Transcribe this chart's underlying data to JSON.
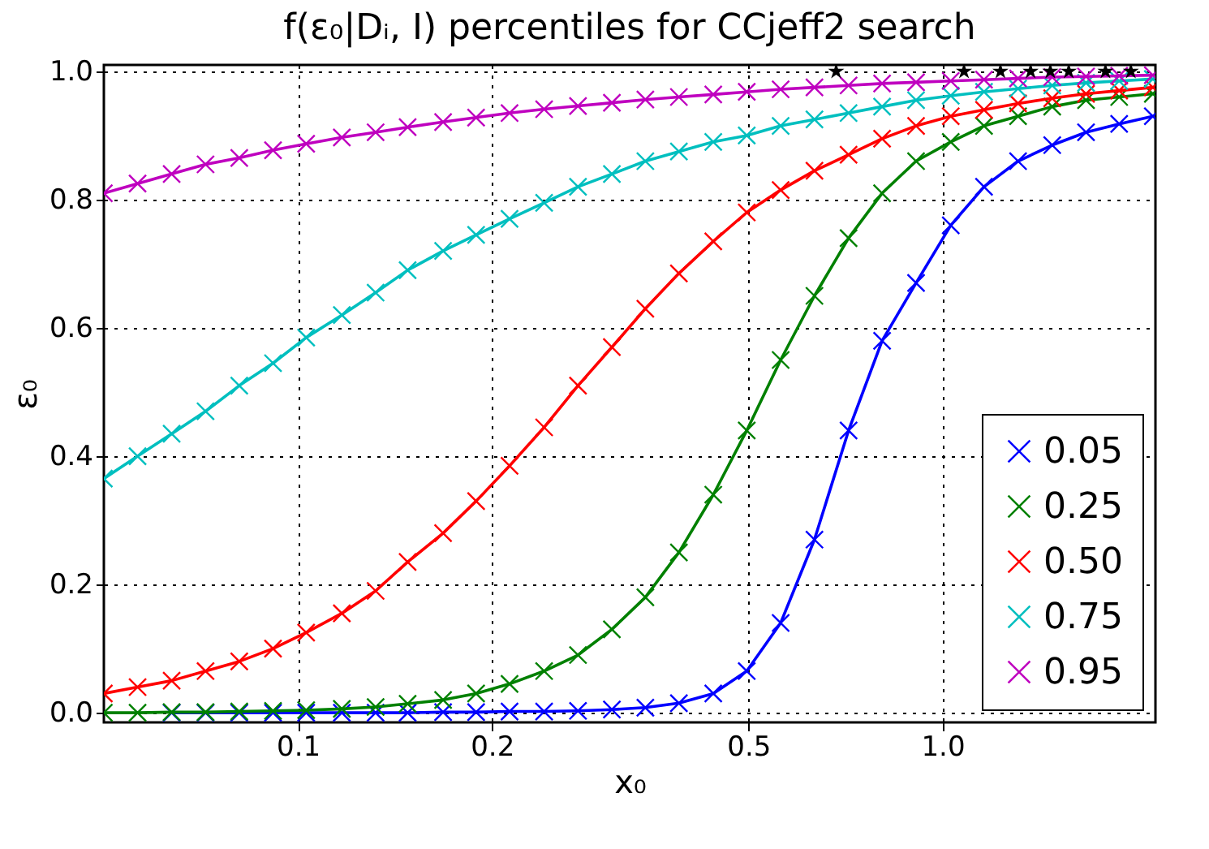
{
  "chart_data": {
    "type": "line",
    "title": "f(ε₀|Dᵢ, I) percentiles for CCjeff2 search",
    "xlabel": "x₀",
    "ylabel": "ε₀",
    "x": [
      0.05,
      0.0564,
      0.0637,
      0.0719,
      0.0811,
      0.0915,
      0.103,
      0.117,
      0.132,
      0.148,
      0.168,
      0.189,
      0.213,
      0.241,
      0.272,
      0.307,
      0.346,
      0.39,
      0.441,
      0.497,
      0.561,
      0.633,
      0.715,
      0.806,
      0.91,
      1.03,
      1.16,
      1.31,
      1.48,
      1.67,
      1.88,
      2.12
    ],
    "series": [
      {
        "name": "0.05",
        "color": "#0000ff",
        "values": [
          null,
          null,
          0,
          0,
          0,
          0,
          0,
          0,
          0,
          0,
          0.001,
          0.001,
          0.002,
          0.002,
          0.003,
          0.005,
          0.008,
          0.015,
          0.03,
          0.065,
          0.14,
          0.27,
          0.44,
          0.58,
          0.67,
          0.76,
          0.82,
          0.86,
          0.885,
          0.905,
          0.918,
          0.93
        ]
      },
      {
        "name": "0.25",
        "color": "#008000",
        "values": [
          0,
          0,
          0.001,
          0.001,
          0.002,
          0.003,
          0.004,
          0.006,
          0.009,
          0.014,
          0.02,
          0.03,
          0.045,
          0.065,
          0.09,
          0.13,
          0.18,
          0.25,
          0.34,
          0.44,
          0.55,
          0.65,
          0.74,
          0.81,
          0.86,
          0.89,
          0.915,
          0.93,
          0.945,
          0.955,
          0.96,
          0.965
        ]
      },
      {
        "name": "0.50",
        "color": "#ff0000",
        "values": [
          0.03,
          0.04,
          0.05,
          0.065,
          0.08,
          0.1,
          0.125,
          0.155,
          0.19,
          0.235,
          0.28,
          0.33,
          0.385,
          0.445,
          0.51,
          0.57,
          0.63,
          0.685,
          0.735,
          0.78,
          0.815,
          0.845,
          0.87,
          0.895,
          0.915,
          0.93,
          0.94,
          0.95,
          0.958,
          0.965,
          0.97,
          0.975
        ]
      },
      {
        "name": "0.75",
        "color": "#00bfbf",
        "values": [
          0.365,
          0.4,
          0.435,
          0.47,
          0.51,
          0.545,
          0.585,
          0.62,
          0.655,
          0.69,
          0.72,
          0.745,
          0.77,
          0.795,
          0.82,
          0.84,
          0.86,
          0.875,
          0.89,
          0.9,
          0.915,
          0.925,
          0.935,
          0.945,
          0.955,
          0.962,
          0.968,
          0.973,
          0.978,
          0.982,
          0.985,
          0.988
        ]
      },
      {
        "name": "0.95",
        "color": "#bf00bf",
        "values": [
          0.81,
          0.825,
          0.84,
          0.855,
          0.865,
          0.877,
          0.887,
          0.897,
          0.905,
          0.913,
          0.921,
          0.928,
          0.935,
          0.941,
          0.946,
          0.951,
          0.956,
          0.96,
          0.964,
          0.968,
          0.972,
          0.975,
          0.978,
          0.981,
          0.983,
          0.985,
          0.987,
          0.989,
          0.991,
          0.992,
          0.993,
          0.994
        ]
      },
      {
        "type": "scatter",
        "marker": "star",
        "color": "#000000",
        "x": [
          0.684,
          1.08,
          1.23,
          1.37,
          1.47,
          1.57,
          1.79,
          1.96
        ],
        "values": [
          1.0,
          1.0,
          1.0,
          1.0,
          1.0,
          1.0,
          1.0,
          1.0
        ]
      }
    ],
    "marker": "cross",
    "line_style": "solid",
    "log": "x",
    "grid": true,
    "legend": "bottom right",
    "xlim": [
      0.05,
      2.14
    ],
    "ylim": [
      -0.015,
      1.01
    ],
    "xticks": [
      0.1,
      0.2,
      0.5,
      {
        "value": 1.0,
        "label": "1.0"
      }
    ],
    "yticks": [
      {
        "value": 0,
        "label": "0.0"
      },
      0.2,
      0.4,
      0.6,
      0.8,
      {
        "value": 1.0,
        "label": "1.0"
      }
    ]
  }
}
